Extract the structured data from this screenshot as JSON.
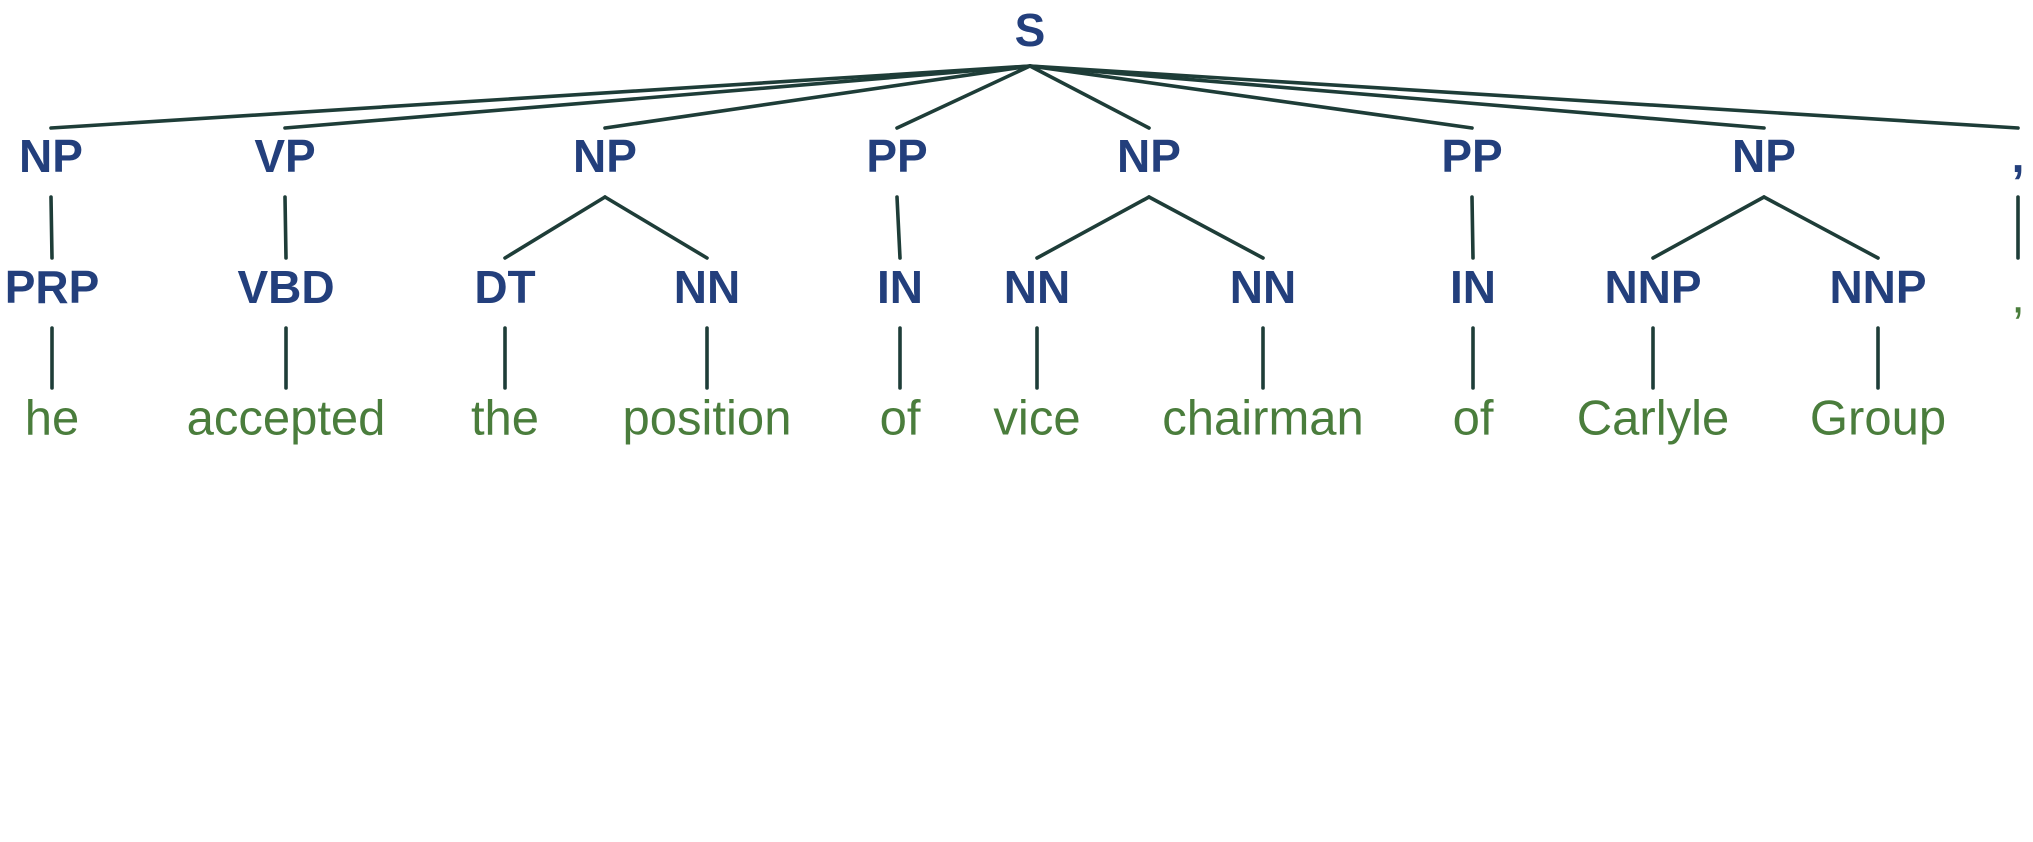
{
  "colors": {
    "category": "#233f7c",
    "word": "#4a7d3c",
    "edge": "#1e3d38"
  },
  "tree": {
    "root": {
      "label": "S"
    },
    "phrases": [
      {
        "label": "NP",
        "tags": [
          {
            "label": "PRP",
            "word": "he"
          }
        ]
      },
      {
        "label": "VP",
        "tags": [
          {
            "label": "VBD",
            "word": "accepted"
          }
        ]
      },
      {
        "label": "NP",
        "tags": [
          {
            "label": "DT",
            "word": "the"
          },
          {
            "label": "NN",
            "word": "position"
          }
        ]
      },
      {
        "label": "PP",
        "tags": [
          {
            "label": "IN",
            "word": "of"
          }
        ]
      },
      {
        "label": "NP",
        "tags": [
          {
            "label": "NN",
            "word": "vice"
          },
          {
            "label": "NN",
            "word": "chairman"
          }
        ]
      },
      {
        "label": "PP",
        "tags": [
          {
            "label": "IN",
            "word": "of"
          }
        ]
      },
      {
        "label": "NP",
        "tags": [
          {
            "label": "NNP",
            "word": "Carlyle"
          },
          {
            "label": "NNP",
            "word": "Group"
          }
        ]
      },
      {
        "label": ",",
        "tags": [
          {
            "label": null,
            "word": ","
          }
        ]
      }
    ]
  }
}
